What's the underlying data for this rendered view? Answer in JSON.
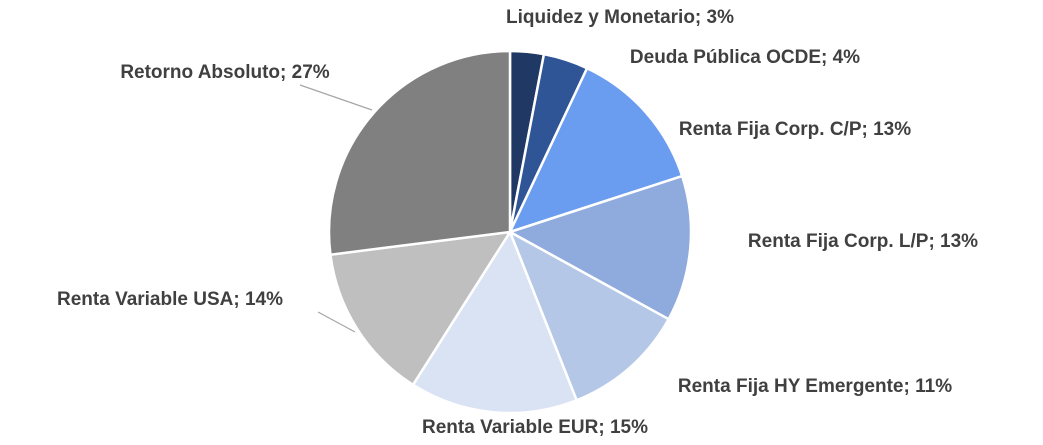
{
  "chart_data": {
    "type": "pie",
    "labels": [
      "Liquidez y Monetario; 3%",
      "Deuda Pública OCDE; 4%",
      "Renta Fija Corp. C/P; 13%",
      "Renta Fija Corp. L/P; 13%",
      "Renta Fija HY Emergente; 11%",
      "Renta Variable EUR; 15%",
      "Renta Variable USA; 14%",
      "Retorno Absoluto; 27%"
    ],
    "values": [
      3,
      4,
      13,
      13,
      11,
      15,
      14,
      27
    ],
    "colors": [
      "#203864",
      "#2f5597",
      "#6a9cf0",
      "#8faadc",
      "#b4c7e7",
      "#dae3f3",
      "#bfbfbf",
      "#808080"
    ]
  }
}
